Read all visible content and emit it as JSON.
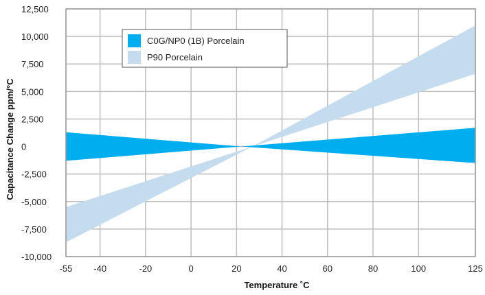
{
  "chart_data": {
    "type": "area",
    "xlabel": "Temperature ˚C",
    "ylabel": "Capacitance Change ppm/°C",
    "xlim": [
      -55,
      125
    ],
    "ylim": [
      -10000,
      12500
    ],
    "x_ticks": [
      "-55",
      "-40",
      "-20",
      "0",
      "20",
      "40",
      "60",
      "80",
      "100",
      "125"
    ],
    "y_ticks": [
      "12,500",
      "10,000",
      "7,500",
      "5,000",
      "2,500",
      "0",
      "-2,500",
      "-5,000",
      "-7,500",
      "-10,000"
    ],
    "grid": true,
    "legend_position": "top-left",
    "series": [
      {
        "name": "P90 Porcelain",
        "color": "#c5dcef",
        "x": [
          -55,
          27,
          125
        ],
        "upper": [
          -5500,
          0,
          11000
        ],
        "lower": [
          -8700,
          0,
          6600
        ]
      },
      {
        "name": "C0G/NP0 (1B) Porcelain",
        "color": "#00aeef",
        "x": [
          -55,
          22,
          125
        ],
        "upper": [
          1300,
          0,
          1700
        ],
        "lower": [
          -1300,
          0,
          -1500
        ]
      }
    ],
    "legend": [
      {
        "label": "C0G/NP0 (1B) Porcelain",
        "color": "#00aeef"
      },
      {
        "label": "P90 Porcelain",
        "color": "#c5dcef"
      }
    ]
  }
}
